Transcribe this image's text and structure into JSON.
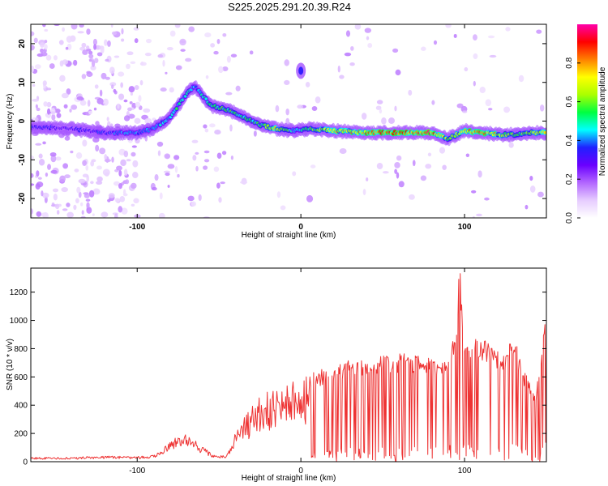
{
  "title": "S225.2025.291.20.39.R24",
  "chart_data": [
    {
      "type": "heatmap",
      "xlabel": "Height of straight line (km)",
      "ylabel": "Frequency (Hz)",
      "xlim": [
        -165,
        150
      ],
      "ylim": [
        -25,
        25
      ],
      "x_ticks": [
        -100,
        0,
        100
      ],
      "y_ticks": [
        -20,
        -10,
        0,
        10,
        20
      ],
      "colorbar": {
        "label": "Normalized spectral amplitude",
        "range": [
          0,
          1
        ],
        "ticks": [
          0.0,
          0.2,
          0.4,
          0.6,
          0.8
        ],
        "colormap": [
          "#ffffff",
          "#e6ccff",
          "#b266ff",
          "#6a00ff",
          "#2020ff",
          "#00ffff",
          "#00ff40",
          "#aaff00",
          "#ffff00",
          "#ff8000",
          "#ff0000",
          "#ff00aa"
        ]
      },
      "ridge_frequency": {
        "x": [
          -165,
          -140,
          -120,
          -100,
          -90,
          -80,
          -75,
          -70,
          -65,
          -55,
          -45,
          -35,
          -25,
          -15,
          -5,
          5,
          20,
          40,
          60,
          80,
          90,
          100,
          110,
          120,
          130,
          140,
          150
        ],
        "y": [
          -1.5,
          -2,
          -3,
          -3,
          -2,
          1,
          4,
          7,
          9,
          4,
          3,
          1,
          -1,
          -2,
          -2.5,
          -2,
          -2.5,
          -3,
          -3,
          -3,
          -4.5,
          -2.5,
          -3,
          -3.5,
          -3.5,
          -3,
          -3
        ],
        "amplitude": [
          0.35,
          0.3,
          0.35,
          0.4,
          0.4,
          0.45,
          0.5,
          0.45,
          0.4,
          0.5,
          0.55,
          0.5,
          0.55,
          0.7,
          0.45,
          0.55,
          0.7,
          0.8,
          0.9,
          0.85,
          0.6,
          0.75,
          0.8,
          0.7,
          0.55,
          0.6,
          0.7
        ]
      },
      "feature_at_zero": {
        "x": 0,
        "y": 13,
        "amplitude": 0.35
      }
    },
    {
      "type": "line",
      "xlabel": "Height of straight line (km)",
      "ylabel": "SNR (10 * v/v)",
      "xlim": [
        -165,
        150
      ],
      "ylim": [
        0,
        1370
      ],
      "x_ticks": [
        -100,
        0,
        100
      ],
      "y_ticks": [
        0,
        200,
        400,
        600,
        800,
        1000,
        1200
      ],
      "color": "#ee3333",
      "envelope": {
        "x": [
          -165,
          -140,
          -120,
          -100,
          -95,
          -90,
          -85,
          -80,
          -75,
          -70,
          -65,
          -60,
          -55,
          -50,
          -45,
          -40,
          -35,
          -30,
          -25,
          -20,
          -15,
          -10,
          -5,
          0,
          5,
          10,
          15,
          20,
          30,
          40,
          50,
          60,
          70,
          80,
          85,
          90,
          95,
          97,
          100,
          110,
          115,
          120,
          125,
          130,
          135,
          140,
          143,
          146,
          150
        ],
        "y": [
          30,
          30,
          40,
          35,
          40,
          50,
          80,
          140,
          180,
          200,
          150,
          100,
          60,
          40,
          50,
          200,
          300,
          380,
          440,
          480,
          500,
          520,
          540,
          560,
          580,
          620,
          640,
          660,
          690,
          710,
          720,
          740,
          730,
          700,
          690,
          750,
          900,
          1370,
          820,
          830,
          800,
          760,
          720,
          880,
          650,
          560,
          450,
          700,
          1060
        ]
      }
    }
  ]
}
